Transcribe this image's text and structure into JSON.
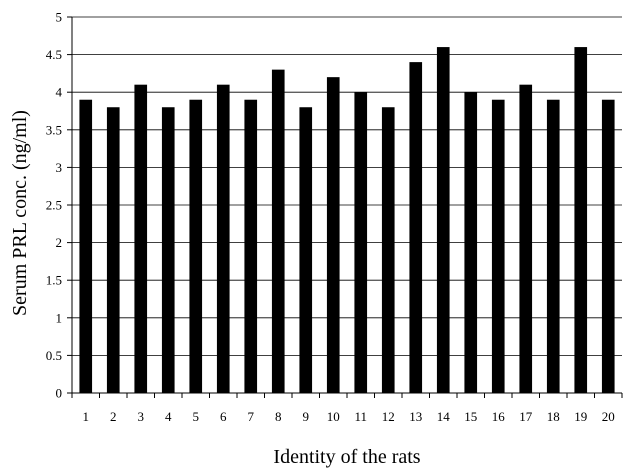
{
  "chart_data": {
    "type": "bar",
    "title": "",
    "xlabel": "Identity of the rats",
    "ylabel": "Serum PRL conc. (ng/ml)",
    "categories": [
      "1",
      "2",
      "3",
      "4",
      "5",
      "6",
      "7",
      "8",
      "9",
      "10",
      "11",
      "12",
      "13",
      "14",
      "15",
      "16",
      "17",
      "18",
      "19",
      "20"
    ],
    "values": [
      3.9,
      3.8,
      4.1,
      3.8,
      3.9,
      4.1,
      3.9,
      4.3,
      3.8,
      4.2,
      4.0,
      3.8,
      4.4,
      4.6,
      4.0,
      3.9,
      4.1,
      3.9,
      4.6,
      3.9
    ],
    "ylim": [
      0,
      5
    ],
    "yticks": [
      "0",
      "0.5",
      "1",
      "1.5",
      "2",
      "2.5",
      "3",
      "3.5",
      "4",
      "4.5",
      "5"
    ],
    "grid": true,
    "bar_color": "#000000",
    "grid_color": "#000000"
  }
}
